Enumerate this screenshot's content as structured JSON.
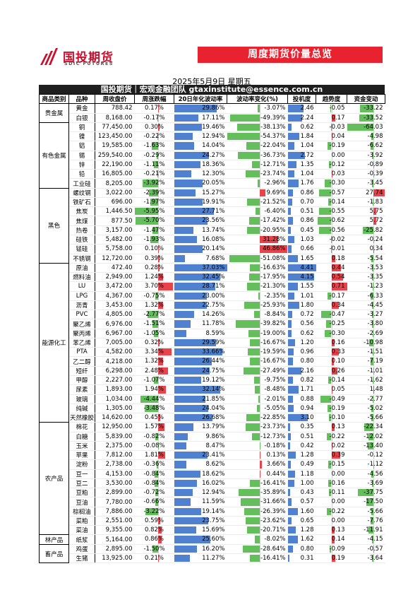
{
  "header": {
    "logo_cn": "国投期货",
    "logo_en": "SDIC FUTURES",
    "banner": "周度期货价量总览",
    "date": "2025年5月9日 星期五",
    "org": "国投期货｜宏观金融团队 gtaxinstitute@essence.com.cn"
  },
  "columns": [
    "商品类别",
    "品种",
    "周收盘价",
    "周涨跌幅",
    "20日年化波动率",
    "波动率变化(%)",
    "投机度",
    "趋势度",
    "资金变动"
  ],
  "colors": {
    "vol": "#4f81d0",
    "pos": "#63be5b",
    "neg": "#e8424a",
    "banner": "#e8222e"
  },
  "groups": [
    {
      "name": "贵金属",
      "rows": [
        {
          "name": "黄金",
          "close": "788.42",
          "chg": "0.17%",
          "vol": "29.86%",
          "vchg": "-3.07%",
          "spec": "2.46",
          "trend": "-0.05",
          "fund": "-33.22"
        },
        {
          "name": "白银",
          "close": "8,168.00",
          "chg": "-0.17%",
          "vol": "17.11%",
          "vchg": "-49.39%",
          "spec": "2.24",
          "trend": "0.17",
          "fund": "-33.52"
        }
      ]
    },
    {
      "name": "有色金属",
      "rows": [
        {
          "name": "铜",
          "close": "77,450.00",
          "chg": "0.30%",
          "vol": "19.46%",
          "vchg": "-38.13%",
          "spec": "0.62",
          "trend": "-0.03",
          "fund": "-64.03"
        },
        {
          "name": "镍",
          "close": "123,450.00",
          "chg": "-0.22%",
          "vol": "12.94%",
          "vchg": "-54.37%",
          "spec": "1.84",
          "trend": "0.04",
          "fund": "-4.98"
        },
        {
          "name": "铝",
          "close": "19,585.00",
          "chg": "-1.63%",
          "vol": "14.04%",
          "vchg": "-22.04%",
          "spec": "1.04",
          "trend": "-0.19",
          "fund": "-6.62"
        },
        {
          "name": "锡",
          "close": "259,540.00",
          "chg": "-0.29%",
          "vol": "24.27%",
          "vchg": "-36.73%",
          "spec": "2.72",
          "trend": "0.00",
          "fund": "-3.92"
        },
        {
          "name": "锌",
          "close": "22,190.00",
          "chg": "-1.11%",
          "vol": "18.36%",
          "vchg": "-12.71%",
          "spec": "1.35",
          "trend": "-0.12",
          "fund": "-0.89"
        },
        {
          "name": "铅",
          "close": "16,805.00",
          "chg": "-0.21%",
          "vol": "12.30%",
          "vchg": "-23.74%",
          "spec": "1.04",
          "trend": "0.03",
          "fund": "-0.39"
        },
        {
          "name": "工业硅",
          "close": "8,205.00",
          "chg": "-3.92%",
          "vol": "20.05%",
          "vchg": "-2.96%",
          "spec": "1.76",
          "trend": "-0.30",
          "fund": "-3.45"
        }
      ]
    },
    {
      "name": "黑色",
      "rows": [
        {
          "name": "螺纹钢",
          "close": "3,022.00",
          "chg": "-2.39%",
          "vol": "15.27%",
          "vchg": "9.69%",
          "spec": "0.86",
          "trend": "-0.57",
          "fund": "27.74"
        },
        {
          "name": "铁矿石",
          "close": "696.00",
          "chg": "-1.97%",
          "vol": "19.91%",
          "vchg": "-21.52%",
          "spec": "0.70",
          "trend": "-0.14",
          "fund": "-1.83"
        },
        {
          "name": "焦炭",
          "close": "1,446.50",
          "chg": "-5.95%",
          "vol": "27.71%",
          "vchg": "-6.40%",
          "spec": "0.51",
          "trend": "-0.55",
          "fund": "5.75"
        },
        {
          "name": "焦煤",
          "close": "877.50",
          "chg": "-5.70%",
          "vol": "23.56%",
          "vchg": "-17.42%",
          "spec": "0.86",
          "trend": "-0.62",
          "fund": "5.72"
        },
        {
          "name": "热卷",
          "close": "3,157.00",
          "chg": "-1.47%",
          "vol": "13.74%",
          "vchg": "-20.95%",
          "spec": "0.45",
          "trend": "-0.56",
          "fund": "-25.82"
        },
        {
          "name": "硅铁",
          "close": "5,482.00",
          "chg": "-1.93%",
          "vol": "16.08%",
          "vchg": "31.28%",
          "spec": "1.03",
          "trend": "-0.02",
          "fund": "-0.24"
        },
        {
          "name": "锰硅",
          "close": "5,758.00",
          "chg": "0.10%",
          "vol": "20.14%",
          "vchg": "46.86%",
          "spec": "0.66",
          "trend": "-0.01",
          "fund": "0.34"
        },
        {
          "name": "不锈钢",
          "close": "12,720.00",
          "chg": "0.39%",
          "vol": "7.68%",
          "vchg": "-51.08%",
          "spec": "1.65",
          "trend": "0.18",
          "fund": "-5.54"
        }
      ]
    },
    {
      "name": "能源化工",
      "rows": [
        {
          "name": "原油",
          "close": "472.40",
          "chg": "0.28%",
          "vol": "37.03%",
          "vchg": "-16.63%",
          "spec": "4.41",
          "trend": "0.44",
          "fund": "-3.53"
        },
        {
          "name": "燃料油",
          "close": "2,949.00",
          "chg": "1.24%",
          "vol": "32.45%",
          "vchg": "-17.95%",
          "spec": "4.15",
          "trend": "0.54",
          "fund": "-3.35"
        },
        {
          "name": "LU",
          "close": "3,472.00",
          "chg": "3.70%",
          "vol": "28.71%",
          "vchg": "-21.30%",
          "spec": "1.55",
          "trend": "0.71",
          "fund": "-1.23"
        },
        {
          "name": "LPG",
          "close": "4,367.00",
          "chg": "-0.75%",
          "vol": "23.00%",
          "vchg": "-2.35%",
          "spec": "1.01",
          "trend": "-0.17",
          "fund": "-6.33"
        },
        {
          "name": "沥青",
          "close": "3,453.00",
          "chg": "1.32%",
          "vol": "22.75%",
          "vchg": "-25.93%",
          "spec": "1.80",
          "trend": "0.34",
          "fund": "-4.45"
        },
        {
          "name": "PVC",
          "close": "4,805.00",
          "chg": "-2.77%",
          "vol": "14.26%",
          "vchg": "-8.84%",
          "spec": "0.72",
          "trend": "-0.47",
          "fund": "-3.27"
        },
        {
          "name": "聚乙烯",
          "close": "6,976.00",
          "chg": "-1.51%",
          "vol": "11.78%",
          "vchg": "-39.82%",
          "spec": "0.56",
          "trend": "-0.25",
          "fund": "-3.80"
        },
        {
          "name": "聚丙烯",
          "close": "6,967.00",
          "chg": "-1.05%",
          "vol": "8.59%",
          "vchg": "-19.00%",
          "spec": "0.62",
          "trend": "-0.30",
          "fund": "-2.69"
        },
        {
          "name": "苯乙烯",
          "close": "7,005.00",
          "chg": "0.32%",
          "vol": "29.59%",
          "vchg": "-16.67%",
          "spec": "1.20",
          "trend": "0.16",
          "fund": "-10.98"
        },
        {
          "name": "PTA",
          "close": "4,582.00",
          "chg": "3.34%",
          "vol": "33.66%",
          "vchg": "-19.59%",
          "spec": "0.96",
          "trend": "0.33",
          "fund": "-1.51"
        },
        {
          "name": "乙二醇",
          "close": "4,218.00",
          "chg": "1.32%",
          "vol": "26.44%",
          "vchg": "-16.67%",
          "spec": "0.80",
          "trend": "0.10",
          "fund": "-7.19"
        },
        {
          "name": "短纤",
          "close": "6,298.00",
          "chg": "2.48%",
          "vol": "24.75%",
          "vchg": "-27.49%",
          "spec": "2.16",
          "trend": "0.26",
          "fund": "-1.01"
        },
        {
          "name": "甲醇",
          "close": "2,227.00",
          "chg": "-1.07%",
          "vol": "19.12%",
          "vchg": "-9.75%",
          "spec": "0.82",
          "trend": "-0.14",
          "fund": "-1.62"
        },
        {
          "name": "尿素",
          "close": "1,893.00",
          "chg": "1.94%",
          "vol": "32.14%",
          "vchg": "-8.48%",
          "spec": "1.71",
          "trend": "0.05",
          "fund": "1.48"
        },
        {
          "name": "玻璃",
          "close": "1,034.00",
          "chg": "-4.44%",
          "vol": "21.85%",
          "vchg": "-2.01%",
          "spec": "0.88",
          "trend": "-0.49",
          "fund": "-2.77"
        },
        {
          "name": "纯碱",
          "close": "1,305.00",
          "chg": "-3.48%",
          "vol": "24.04%",
          "vchg": "-5.05%",
          "spec": "0.94",
          "trend": "-0.19",
          "fund": "-5.02"
        },
        {
          "name": "天然橡胶",
          "close": "14,620.00",
          "chg": "0.45%",
          "vol": "26.68%",
          "vchg": "-22.85%",
          "spec": "3.10",
          "trend": "-0.10",
          "fund": "-5.66"
        }
      ]
    },
    {
      "name": "农产品",
      "rows": [
        {
          "name": "棉花",
          "close": "12,950.00",
          "chg": "1.57%",
          "vol": "13.79%",
          "vchg": "-23.73%",
          "spec": "0.35",
          "trend": "0.13",
          "fund": "-22.34"
        },
        {
          "name": "白糖",
          "close": "5,839.00",
          "chg": "-0.82%",
          "vol": "9.86%",
          "vchg": "-12.73%",
          "spec": "0.51",
          "trend": "-0.22",
          "fund": "-12.02"
        },
        {
          "name": "玉米",
          "close": "2,375.00",
          "chg": "-0.08%",
          "vol": "8.47%",
          "vchg": "-0.18%",
          "spec": "0.42",
          "trend": "0.02",
          "fund": "-13.40"
        },
        {
          "name": "苹果",
          "close": "7,812.00",
          "chg": "1.81%",
          "vol": "23.41%",
          "vchg": "0.13%",
          "spec": "1.28",
          "trend": "0.39",
          "fund": "-0.12"
        },
        {
          "name": "淀粉",
          "close": "2,738.00",
          "chg": "-0.36%",
          "vol": "8.62%",
          "vchg": "3.66%",
          "spec": "0.49",
          "trend": "-0.15",
          "fund": "-1.12"
        },
        {
          "name": "豆一",
          "close": "4,153.00",
          "chg": "-0.84%",
          "vol": "18.62%",
          "vchg": "0.44%",
          "spec": "1.18",
          "trend": "0.00",
          "fund": "-4.56"
        },
        {
          "name": "豆二",
          "close": "3,530.00",
          "chg": "-0.84%",
          "vol": "16.02%",
          "vchg": "-16.41%",
          "spec": "1.00",
          "trend": "-0.16",
          "fund": "-3.69"
        },
        {
          "name": "豆粕",
          "close": "2,899.00",
          "chg": "-0.72%",
          "vol": "12.94%",
          "vchg": "-35.89%",
          "spec": "0.43",
          "trend": "-0.11",
          "fund": "-37.75"
        },
        {
          "name": "豆油",
          "close": "7,780.00",
          "chg": "-0.66%",
          "vol": "11.59%",
          "vchg": "-31.66%",
          "spec": "0.57",
          "trend": "0.00",
          "fund": "-17.50"
        },
        {
          "name": "棕榈油",
          "close": "7,886.00",
          "chg": "-3.22%",
          "vol": "19.14%",
          "vchg": "-26.39%",
          "spec": "1.60",
          "trend": "-0.22",
          "fund": "-5.66"
        },
        {
          "name": "菜粕",
          "close": "2,551.00",
          "chg": "0.59%",
          "vol": "23.75%",
          "vchg": "-23.62%",
          "spec": "0.65",
          "trend": "0.00",
          "fund": "-7.76"
        },
        {
          "name": "菜油",
          "close": "9,355.00",
          "chg": "0.82%",
          "vol": "15.69%",
          "vchg": "-20.71%",
          "spec": "1.28",
          "trend": "0.13",
          "fund": "-11.91"
        }
      ]
    },
    {
      "name": "林产品",
      "rows": [
        {
          "name": "纸浆",
          "close": "5,164.00",
          "chg": "0.86%",
          "vol": "25.60%",
          "vchg": "-8.02%",
          "spec": "1.62",
          "trend": "0.14",
          "fund": "-4.15"
        }
      ]
    },
    {
      "name": "畜产品",
      "rows": [
        {
          "name": "鸡蛋",
          "close": "2,895.00",
          "chg": "-1.50%",
          "vol": "16.20%",
          "vchg": "-28.64%",
          "spec": "0.80",
          "trend": "-0.09",
          "fund": "-0.57"
        },
        {
          "name": "生猪",
          "close": "13,925.00",
          "chg": "0.21%",
          "vol": "11.27%",
          "vchg": "-16.41%",
          "spec": "0.31",
          "trend": "0.19",
          "fund": "-3.64"
        }
      ]
    }
  ]
}
